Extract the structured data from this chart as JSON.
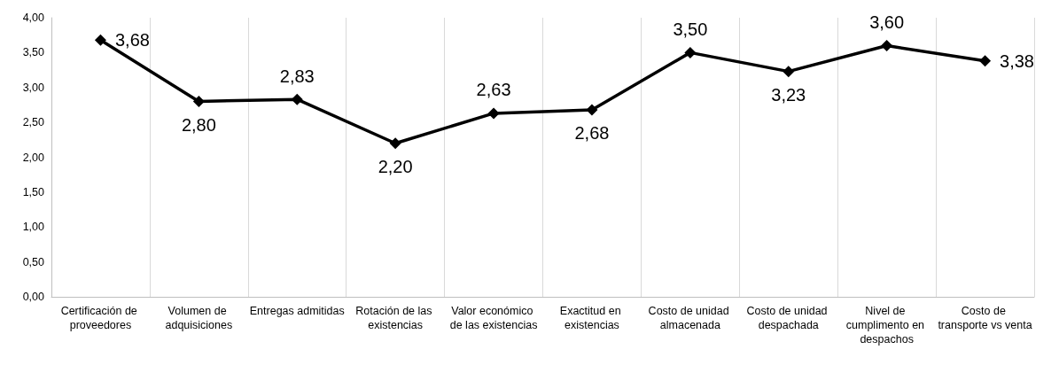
{
  "chart_data": {
    "type": "line",
    "categories": [
      "Certificación de proveedores",
      "Volumen de adquisiciones",
      "Entregas admitidas",
      "Rotación de las existencias",
      "Valor económico de las existencias",
      "Exactitud en existencias",
      "Costo de unidad almacenada",
      "Costo de unidad despachada",
      "Nivel de cumplimento en despachos",
      "Costo de transporte vs venta"
    ],
    "values": [
      3.68,
      2.8,
      2.83,
      2.2,
      2.63,
      2.68,
      3.5,
      3.23,
      3.6,
      3.38
    ],
    "value_labels": [
      "3,68",
      "2,80",
      "2,83",
      "2,20",
      "2,63",
      "2,68",
      "3,50",
      "3,23",
      "3,60",
      "3,38"
    ],
    "color": "#000000",
    "ylim": [
      0,
      4
    ],
    "yticks": [
      {
        "value": 0,
        "label": "0,00"
      },
      {
        "value": 0.5,
        "label": "0,50"
      },
      {
        "value": 1,
        "label": "1,00"
      },
      {
        "value": 1.5,
        "label": "1,50"
      },
      {
        "value": 2,
        "label": "2,00"
      },
      {
        "value": 2.5,
        "label": "2,50"
      },
      {
        "value": 3,
        "label": "3,00"
      },
      {
        "value": 3.5,
        "label": "3,50"
      },
      {
        "value": 4,
        "label": "4,00"
      }
    ],
    "grid": "x",
    "marker": "diamond",
    "line_style": "solid"
  }
}
